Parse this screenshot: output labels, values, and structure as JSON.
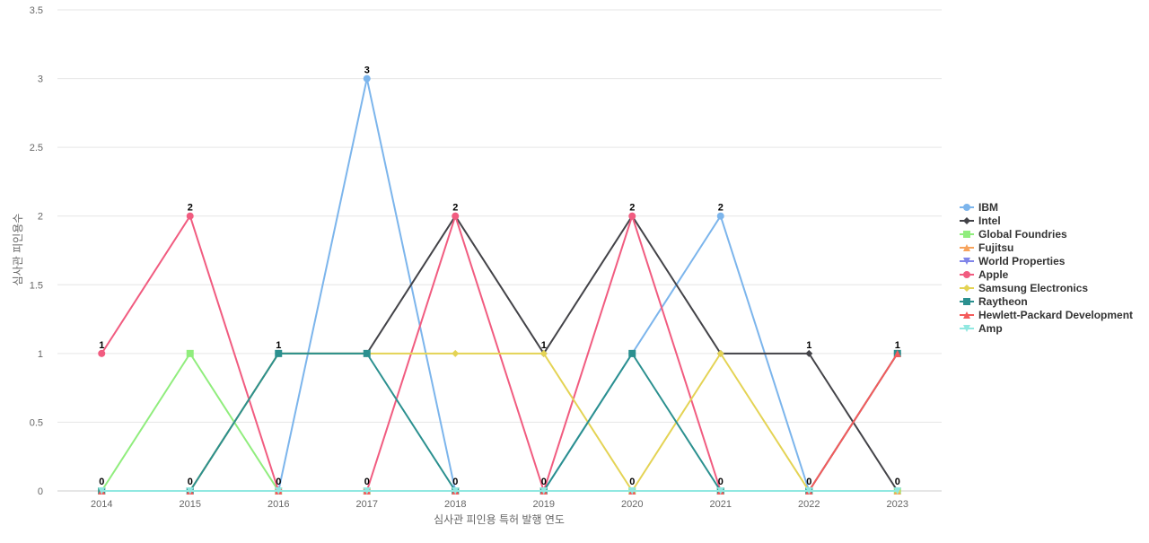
{
  "chart_data": {
    "type": "line",
    "title": "",
    "xlabel": "심사관 피인용 특허 발행 연도",
    "ylabel": "심사관 피인용수",
    "x": [
      "2014",
      "2015",
      "2016",
      "2017",
      "2018",
      "2019",
      "2020",
      "2021",
      "2022",
      "2023"
    ],
    "ylim": [
      0,
      3.5
    ],
    "yticks": [
      "0",
      "0.5",
      "1",
      "1.5",
      "2",
      "2.5",
      "3",
      "3.5"
    ],
    "grid": true,
    "legend_position": "right",
    "series": [
      {
        "name": "IBM",
        "color": "#7cb5ec",
        "marker": "circle",
        "values": [
          0,
          0,
          0,
          3,
          0,
          0,
          1,
          2,
          0,
          0
        ]
      },
      {
        "name": "Intel",
        "color": "#434348",
        "marker": "diamond",
        "values": [
          0,
          0,
          1,
          1,
          2,
          1,
          2,
          1,
          1,
          0
        ]
      },
      {
        "name": "Global Foundries",
        "color": "#90ed7d",
        "marker": "square",
        "values": [
          0,
          1,
          0,
          0,
          0,
          0,
          0,
          0,
          0,
          0
        ]
      },
      {
        "name": "Fujitsu",
        "color": "#f7a35c",
        "marker": "triangle",
        "values": [
          0,
          0,
          0,
          0,
          0,
          0,
          0,
          0,
          0,
          0
        ]
      },
      {
        "name": "World Properties",
        "color": "#8085e9",
        "marker": "triangle-down",
        "values": [
          0,
          0,
          0,
          0,
          0,
          0,
          0,
          0,
          0,
          0
        ]
      },
      {
        "name": "Apple",
        "color": "#f15c80",
        "marker": "circle",
        "values": [
          1,
          2,
          0,
          0,
          2,
          0,
          2,
          0,
          0,
          1
        ]
      },
      {
        "name": "Samsung Electronics",
        "color": "#e4d354",
        "marker": "diamond",
        "values": [
          0,
          0,
          1,
          1,
          1,
          1,
          0,
          1,
          0,
          0
        ]
      },
      {
        "name": "Raytheon",
        "color": "#2b908f",
        "marker": "square",
        "values": [
          0,
          0,
          1,
          1,
          0,
          0,
          1,
          0,
          0,
          1
        ]
      },
      {
        "name": "Hewlett-Packard Development",
        "color": "#f45b5b",
        "marker": "triangle",
        "values": [
          0,
          0,
          0,
          0,
          0,
          0,
          0,
          0,
          0,
          1
        ]
      },
      {
        "name": "Amp",
        "color": "#91e8e1",
        "marker": "triangle-down",
        "values": [
          0,
          0,
          0,
          0,
          0,
          0,
          0,
          0,
          0,
          0
        ]
      }
    ],
    "data_labels": [
      "1",
      "2",
      "1",
      "3",
      "2",
      "1",
      "2",
      "2",
      "1",
      "1"
    ]
  }
}
